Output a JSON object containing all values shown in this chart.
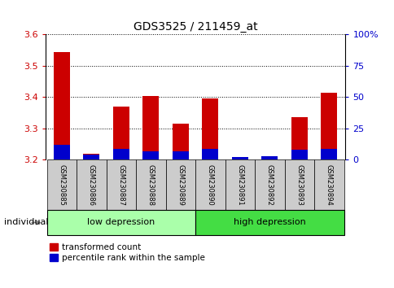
{
  "title": "GDS3525 / 211459_at",
  "samples": [
    "GSM230885",
    "GSM230886",
    "GSM230887",
    "GSM230888",
    "GSM230889",
    "GSM230890",
    "GSM230891",
    "GSM230892",
    "GSM230893",
    "GSM230894"
  ],
  "red_values": [
    3.545,
    3.22,
    3.37,
    3.405,
    3.315,
    3.395,
    3.205,
    3.205,
    3.335,
    3.415
  ],
  "blue_percentiles": [
    12,
    4,
    9,
    7,
    7,
    9,
    2,
    3,
    8,
    9
  ],
  "baseline": 3.2,
  "ylim_left": [
    3.2,
    3.6
  ],
  "ylim_right": [
    0,
    100
  ],
  "yticks_left": [
    3.2,
    3.3,
    3.4,
    3.5,
    3.6
  ],
  "yticks_right": [
    0,
    25,
    50,
    75,
    100
  ],
  "ytick_labels_right": [
    "0",
    "25",
    "50",
    "75",
    "100%"
  ],
  "groups": [
    {
      "label": "low depression",
      "start": 0,
      "end": 5,
      "color": "#aaffaa"
    },
    {
      "label": "high depression",
      "start": 5,
      "end": 10,
      "color": "#44dd44"
    }
  ],
  "red_color": "#cc0000",
  "blue_color": "#0000cc",
  "tick_label_color_left": "#cc0000",
  "tick_label_color_right": "#0000cc",
  "legend_red": "transformed count",
  "legend_blue": "percentile rank within the sample",
  "individual_label": "individual",
  "sample_bg": "#cccccc"
}
